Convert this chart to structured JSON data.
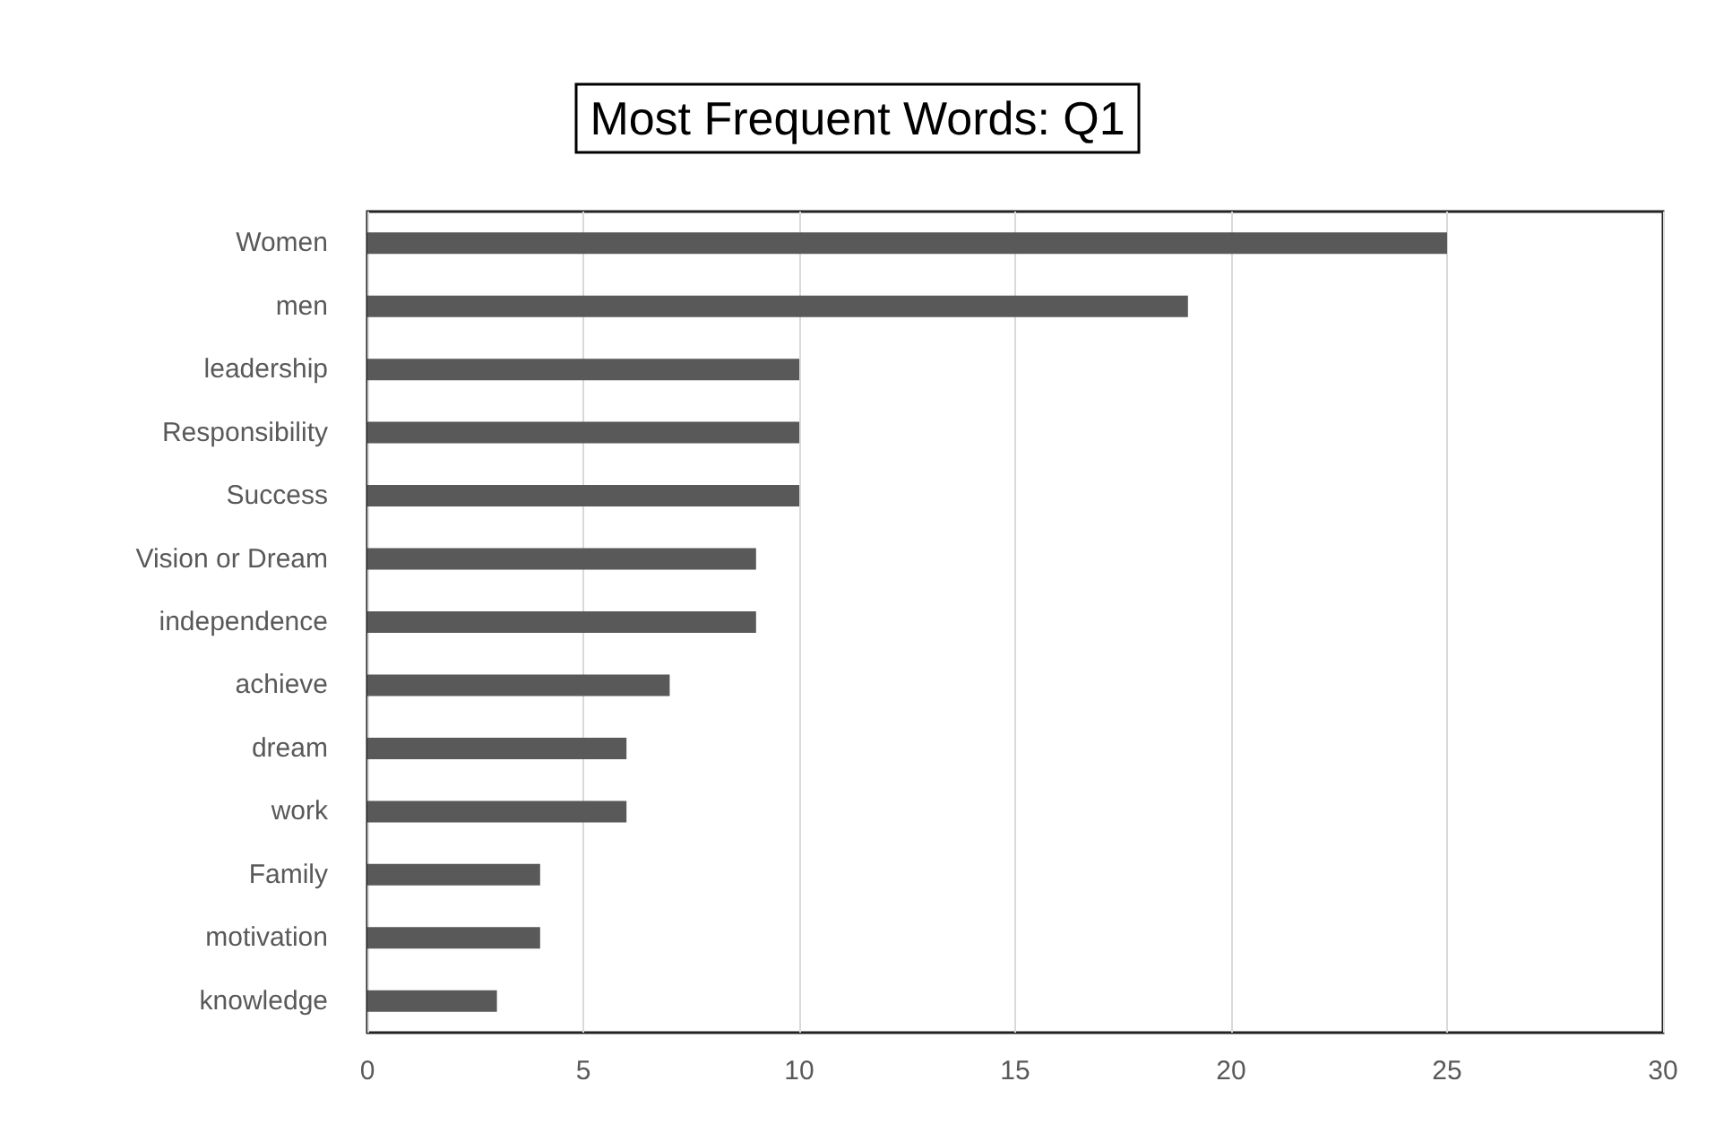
{
  "chart_data": {
    "type": "bar",
    "orientation": "horizontal",
    "title": "Most Frequent Words: Q1",
    "categories": [
      "Women",
      "men",
      "leadership",
      "Responsibility",
      "Success",
      "Vision or Dream",
      "independence",
      "achieve",
      "dream",
      "work",
      "Family",
      "motivation",
      "knowledge"
    ],
    "values": [
      25,
      19,
      10,
      10,
      10,
      9,
      9,
      7,
      6,
      6,
      4,
      4,
      3
    ],
    "color": "#595959",
    "xlim": [
      0,
      30
    ],
    "xticks": [
      0,
      5,
      10,
      15,
      20,
      25,
      30
    ],
    "grid": "x"
  }
}
